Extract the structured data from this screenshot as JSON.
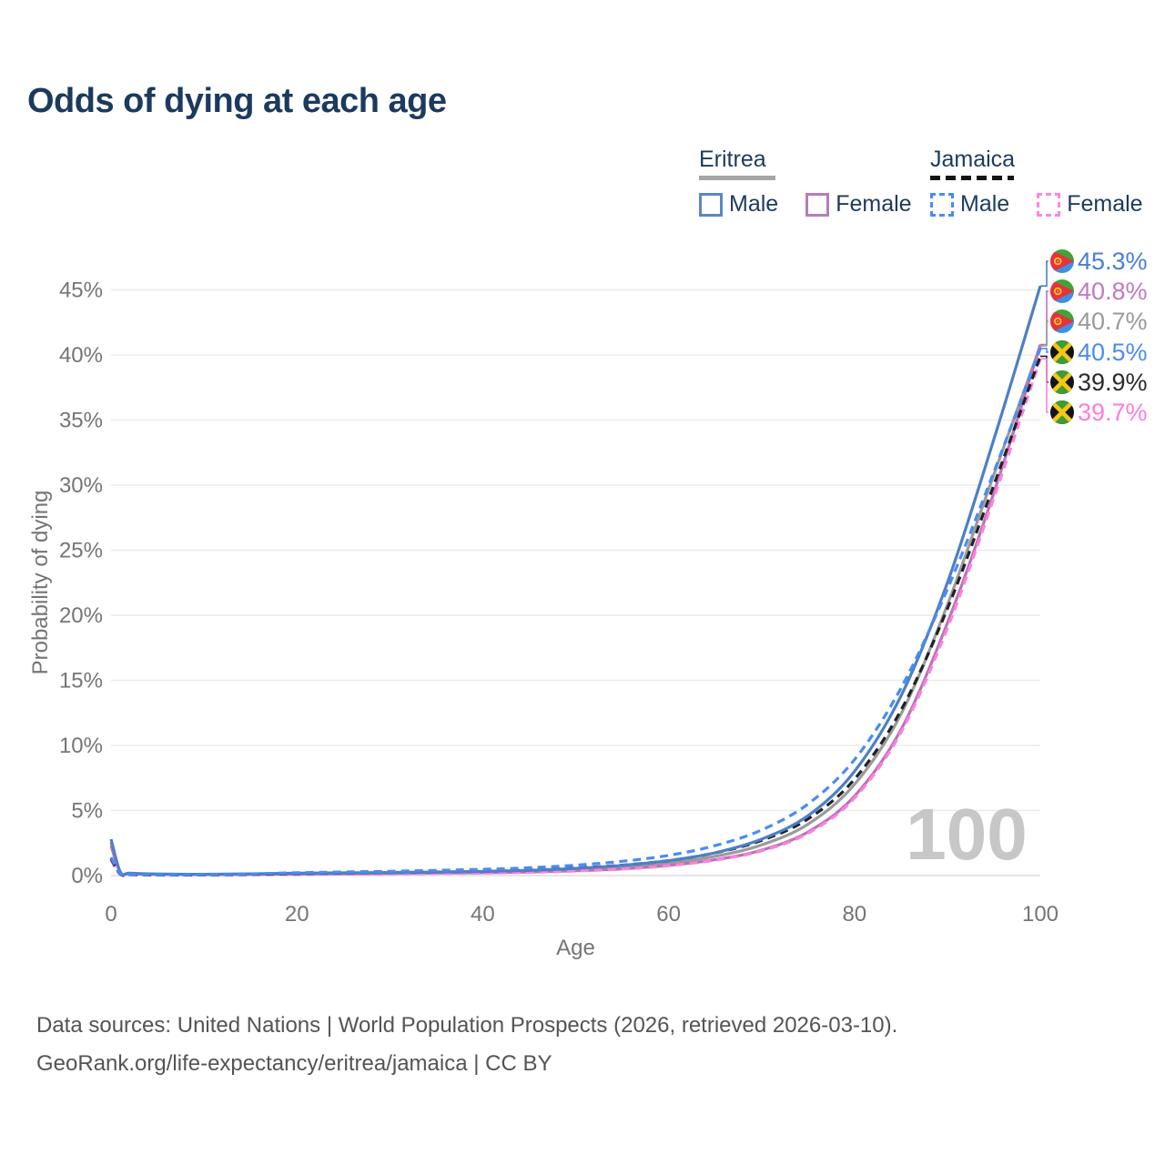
{
  "title": "Odds of dying at each age",
  "legend": {
    "groups": [
      {
        "name": "Eritrea",
        "underline_style": "solid",
        "underline_color": "#a5a5a5",
        "items": [
          {
            "label": "Male",
            "color": "#5b87c5",
            "dashed": false
          },
          {
            "label": "Female",
            "color": "#bc7abc",
            "dashed": false
          }
        ]
      },
      {
        "name": "Jamaica",
        "underline_style": "dashed",
        "underline_color": "#141414",
        "items": [
          {
            "label": "Male",
            "color": "#4a8bf5",
            "dashed": true
          },
          {
            "label": "Female",
            "color": "#ff85e2",
            "dashed": true
          }
        ]
      }
    ]
  },
  "chart_data": {
    "type": "line",
    "title": "Odds of dying at each age",
    "xlabel": "Age",
    "ylabel": "Probability of dying",
    "xlim": [
      0,
      100
    ],
    "ylim": [
      0,
      47
    ],
    "grid": "horizontal",
    "watermark": "100",
    "x_ticks": [
      {
        "v": 0,
        "label": "0"
      },
      {
        "v": 20,
        "label": "20"
      },
      {
        "v": 40,
        "label": "40"
      },
      {
        "v": 60,
        "label": "60"
      },
      {
        "v": 80,
        "label": "80"
      },
      {
        "v": 100,
        "label": "100"
      }
    ],
    "y_ticks": [
      {
        "v": 0,
        "label": "0%"
      },
      {
        "v": 5,
        "label": "5%"
      },
      {
        "v": 10,
        "label": "10%"
      },
      {
        "v": 15,
        "label": "15%"
      },
      {
        "v": 20,
        "label": "20%"
      },
      {
        "v": 25,
        "label": "25%"
      },
      {
        "v": 30,
        "label": "30%"
      },
      {
        "v": 35,
        "label": "35%"
      },
      {
        "v": 40,
        "label": "40%"
      },
      {
        "v": 45,
        "label": "45%"
      }
    ],
    "x": [
      0,
      1,
      2,
      5,
      10,
      15,
      20,
      25,
      30,
      35,
      40,
      45,
      50,
      55,
      60,
      65,
      70,
      75,
      80,
      85,
      90,
      95,
      100
    ],
    "series": [
      {
        "id": "eritrea-both",
        "country": "eritrea",
        "sex": "both",
        "color": "#9b9b9b",
        "dash": "",
        "end_label": "40.7%",
        "label_color": "#9a9a9a",
        "values": [
          2.55,
          0.26,
          0.16,
          0.11,
          0.09,
          0.11,
          0.15,
          0.18,
          0.2,
          0.23,
          0.27,
          0.33,
          0.45,
          0.64,
          0.95,
          1.48,
          2.35,
          3.95,
          7.0,
          12.4,
          20.8,
          30.8,
          40.7
        ]
      },
      {
        "id": "eritrea-female",
        "country": "eritrea",
        "sex": "female",
        "color": "#b873b8",
        "dash": "",
        "end_label": "40.8%",
        "label_color": "#c179c1",
        "values": [
          2.3,
          0.24,
          0.15,
          0.1,
          0.08,
          0.09,
          0.12,
          0.14,
          0.16,
          0.19,
          0.22,
          0.27,
          0.37,
          0.52,
          0.78,
          1.22,
          1.95,
          3.35,
          6.1,
          11.2,
          19.4,
          29.4,
          40.8
        ]
      },
      {
        "id": "jamaica-female",
        "country": "jamaica",
        "sex": "female",
        "color": "#ff80df",
        "dash": "9 6",
        "end_label": "39.7%",
        "label_color": "#ff7bde",
        "values": [
          1.2,
          0.09,
          0.06,
          0.04,
          0.04,
          0.06,
          0.09,
          0.11,
          0.13,
          0.16,
          0.19,
          0.25,
          0.35,
          0.5,
          0.76,
          1.18,
          1.9,
          3.25,
          5.95,
          11.0,
          19.0,
          29.0,
          39.7
        ]
      },
      {
        "id": "jamaica-both",
        "country": "jamaica",
        "sex": "both",
        "color": "#222222",
        "dash": "9 6",
        "end_label": "39.9%",
        "label_color": "#2b2b2b",
        "values": [
          1.3,
          0.1,
          0.07,
          0.05,
          0.05,
          0.09,
          0.15,
          0.19,
          0.23,
          0.28,
          0.33,
          0.42,
          0.57,
          0.8,
          1.15,
          1.74,
          2.7,
          4.35,
          7.4,
          12.7,
          20.5,
          30.0,
          39.9
        ]
      },
      {
        "id": "eritrea-male",
        "country": "eritrea",
        "sex": "male",
        "color": "#4c80c6",
        "dash": "",
        "end_label": "45.3%",
        "label_color": "#4a7fd4",
        "values": [
          2.8,
          0.28,
          0.18,
          0.12,
          0.1,
          0.13,
          0.18,
          0.21,
          0.24,
          0.27,
          0.32,
          0.4,
          0.55,
          0.78,
          1.15,
          1.75,
          2.8,
          4.6,
          8.0,
          13.8,
          22.5,
          33.5,
          45.3
        ]
      },
      {
        "id": "jamaica-male",
        "country": "jamaica",
        "sex": "male",
        "color": "#4a8bf5",
        "dash": "9 6",
        "end_label": "40.5%",
        "label_color": "#4a8bf5",
        "values": [
          1.4,
          0.12,
          0.08,
          0.06,
          0.06,
          0.12,
          0.22,
          0.28,
          0.33,
          0.4,
          0.48,
          0.6,
          0.8,
          1.1,
          1.55,
          2.3,
          3.5,
          5.5,
          8.9,
          14.4,
          22.0,
          31.0,
          40.5
        ]
      }
    ]
  },
  "footer": {
    "line1": "Data sources: United Nations | World Population Prospects (2026, retrieved 2026-03-10).",
    "line2": "GeoRank.org/life-expectancy/eritrea/jamaica | CC BY"
  }
}
